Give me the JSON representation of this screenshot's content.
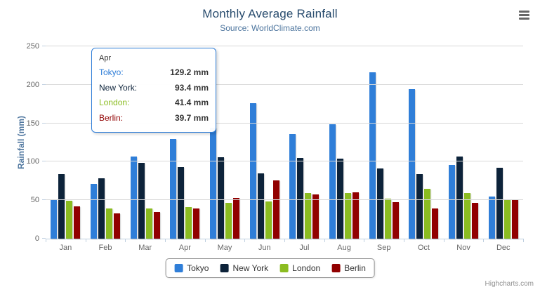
{
  "chart_data": {
    "type": "bar",
    "title": "Monthly Average Rainfall",
    "subtitle": "Source: WorldClimate.com",
    "xlabel": "",
    "ylabel": "Rainfall (mm)",
    "ylim": [
      0,
      250
    ],
    "ytick_interval": 50,
    "grid": true,
    "legend_position": "bottom",
    "categories": [
      "Jan",
      "Feb",
      "Mar",
      "Apr",
      "May",
      "Jun",
      "Jul",
      "Aug",
      "Sep",
      "Oct",
      "Nov",
      "Dec"
    ],
    "series": [
      {
        "name": "Tokyo",
        "color": "#2f7ed8",
        "values": [
          49.9,
          71.5,
          106.4,
          129.2,
          144.0,
          176.0,
          135.6,
          148.5,
          216.4,
          194.1,
          95.6,
          54.4
        ]
      },
      {
        "name": "New York",
        "color": "#0d233a",
        "values": [
          83.6,
          78.8,
          98.5,
          93.4,
          106.0,
          84.5,
          105.0,
          104.3,
          91.2,
          83.5,
          106.6,
          92.3
        ]
      },
      {
        "name": "London",
        "color": "#8bbc21",
        "values": [
          48.9,
          38.8,
          39.3,
          41.4,
          47.0,
          48.3,
          59.0,
          59.6,
          52.4,
          65.2,
          59.3,
          51.2
        ]
      },
      {
        "name": "Berlin",
        "color": "#910000",
        "values": [
          42.4,
          33.2,
          34.5,
          39.7,
          52.6,
          75.5,
          57.4,
          60.4,
          47.6,
          39.1,
          46.8,
          51.1
        ]
      }
    ]
  },
  "tooltip": {
    "header": "Apr",
    "rows": [
      {
        "label": "Tokyo:",
        "value": "129.2 mm",
        "color": "#2f7ed8"
      },
      {
        "label": "New York:",
        "value": "93.4 mm",
        "color": "#0d233a"
      },
      {
        "label": "London:",
        "value": "41.4 mm",
        "color": "#8bbc21"
      },
      {
        "label": "Berlin:",
        "value": "39.7 mm",
        "color": "#910000"
      }
    ]
  },
  "icons": {
    "export_menu": "hamburger-icon"
  },
  "credits": "Highcharts.com"
}
